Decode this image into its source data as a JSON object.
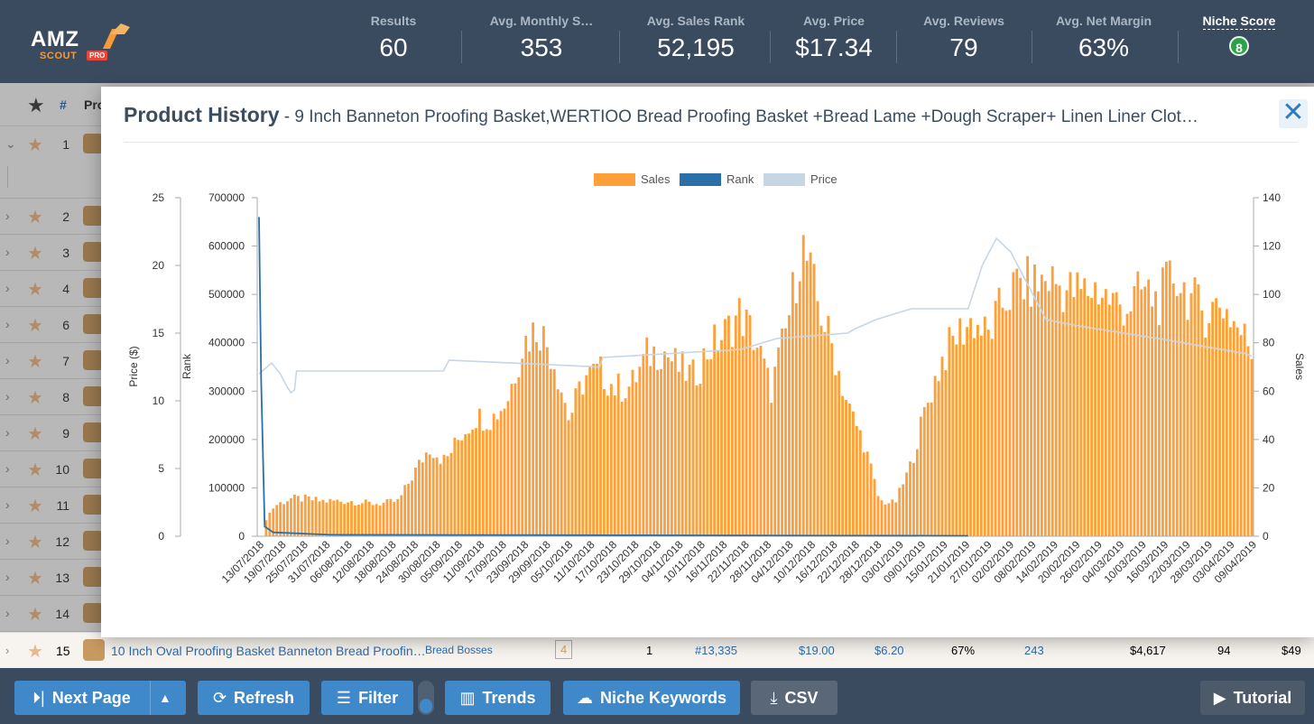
{
  "header": {
    "logo": {
      "amz": "AMZ",
      "scout": "SCOUT",
      "pro": "PRO"
    },
    "stats": [
      {
        "label": "Results",
        "value": "60"
      },
      {
        "label": "Avg. Monthly S…",
        "value": "353"
      },
      {
        "label": "Avg. Sales Rank",
        "value": "52,195"
      },
      {
        "label": "Avg. Price",
        "value": "$17.34"
      },
      {
        "label": "Avg. Reviews",
        "value": "79"
      },
      {
        "label": "Avg. Net Margin",
        "value": "63%"
      }
    ],
    "niche_score": {
      "label": "Niche Score",
      "value": "8"
    }
  },
  "table": {
    "head": {
      "hash": "#",
      "product": "Pro"
    },
    "rows": [
      {
        "num": "1"
      },
      {
        "num": "2"
      },
      {
        "num": "3"
      },
      {
        "num": "4"
      },
      {
        "num": "6"
      },
      {
        "num": "7"
      },
      {
        "num": "8"
      },
      {
        "num": "9"
      },
      {
        "num": "10"
      },
      {
        "num": "11"
      },
      {
        "num": "12"
      },
      {
        "num": "13"
      },
      {
        "num": "14"
      }
    ],
    "row15": {
      "num": "15",
      "name": "10 Inch Oval Proofing Basket Banneton Bread Proofin…",
      "brand": "Bread Bosses",
      "sellers": "4",
      "col_a": "1",
      "rank": "#13,335",
      "price": "$19.00",
      "fees": "$6.20",
      "margin": "67%",
      "reviews": "243",
      "revenue": "$4,617",
      "rpr": "94",
      "last": "$49"
    }
  },
  "modal": {
    "title": "Product History",
    "subtitle": " - 9 Inch Banneton Proofing Basket,WERTIOO Bread Proofing Basket +Bread Lame +Dough Scraper+ Linen Liner Clot…",
    "close": "✕"
  },
  "toolbar": {
    "next_page": "Next Page",
    "refresh": "Refresh",
    "filter": "Filter",
    "trends": "Trends",
    "niche_keywords": "Niche Keywords",
    "csv": "CSV",
    "tutorial": "Tutorial"
  },
  "chart_data": {
    "type": "bar+line",
    "legend": [
      "Sales",
      "Rank",
      "Price"
    ],
    "colors": {
      "sales": "#fea03a",
      "rank": "#2a6fa8",
      "price": "#c7d6e4"
    },
    "axes": {
      "price": {
        "label": "Price ($)",
        "ticks": [
          0,
          5,
          10,
          15,
          20,
          25
        ],
        "range": [
          0,
          25
        ]
      },
      "rank": {
        "label": "Rank",
        "ticks": [
          0,
          100000,
          200000,
          300000,
          400000,
          500000,
          600000,
          700000
        ],
        "tick_labels": [
          "0",
          "100000",
          "200000",
          "300000",
          "400000",
          "500000",
          "600000",
          "700000"
        ],
        "range": [
          0,
          700000
        ]
      },
      "sales": {
        "label": "Sales",
        "ticks": [
          0,
          20,
          40,
          60,
          80,
          100,
          120,
          140
        ],
        "range": [
          0,
          140
        ]
      }
    },
    "x_labels": [
      "13/07/2018",
      "19/07/2018",
      "25/07/2018",
      "31/07/2018",
      "06/08/2018",
      "12/08/2018",
      "18/08/2018",
      "24/08/2018",
      "30/08/2018",
      "05/09/2018",
      "11/09/2018",
      "17/09/2018",
      "23/09/2018",
      "29/09/2018",
      "05/10/2018",
      "11/10/2018",
      "17/10/2018",
      "23/10/2018",
      "29/10/2018",
      "04/11/2018",
      "10/11/2018",
      "16/11/2018",
      "22/11/2018",
      "28/11/2018",
      "04/12/2018",
      "10/12/2018",
      "16/12/2018",
      "22/12/2018",
      "28/12/2018",
      "03/01/2019",
      "09/01/2019",
      "15/01/2019",
      "21/01/2019",
      "27/01/2019",
      "02/02/2019",
      "08/02/2019",
      "14/02/2019",
      "20/02/2019",
      "26/02/2019",
      "04/03/2019",
      "10/03/2019",
      "16/03/2019",
      "22/03/2019",
      "28/03/2019",
      "03/04/2019",
      "09/04/2019"
    ],
    "sales_weekly": [
      3,
      13,
      16,
      16,
      15,
      15,
      15,
      14,
      14,
      15,
      27,
      38,
      32,
      43,
      51,
      50,
      58,
      82,
      90,
      76,
      50,
      68,
      70,
      63,
      64,
      77,
      80,
      72,
      68,
      80,
      86,
      95,
      84,
      62,
      88,
      125,
      100,
      80,
      55,
      40,
      15,
      14,
      30,
      55,
      75,
      86,
      92,
      85,
      100,
      108,
      107,
      110,
      105,
      104,
      106,
      100,
      98,
      105,
      100,
      112,
      102,
      95,
      100,
      90,
      80
    ],
    "rank_series": [
      [
        0,
        660000
      ],
      [
        0.3,
        320000
      ],
      [
        0.8,
        20000
      ],
      [
        2,
        8000
      ],
      [
        10,
        3000
      ],
      [
        100,
        1000
      ]
    ],
    "price_series": [
      [
        0,
        12
      ],
      [
        1.8,
        12.8
      ],
      [
        3,
        12
      ],
      [
        4,
        11
      ],
      [
        4.5,
        10.6
      ],
      [
        5,
        10.8
      ],
      [
        5.3,
        12.2
      ],
      [
        24,
        12.2
      ],
      [
        26,
        12.2
      ],
      [
        26.8,
        13
      ],
      [
        48,
        12.5
      ],
      [
        48.5,
        13.2
      ],
      [
        68,
        13.8
      ],
      [
        73,
        14.6
      ],
      [
        83,
        15
      ],
      [
        84,
        15.3
      ],
      [
        87,
        16
      ],
      [
        92,
        16.8
      ],
      [
        93,
        16.8
      ],
      [
        100,
        16.8
      ],
      [
        102,
        20
      ],
      [
        104,
        22
      ],
      [
        106,
        21
      ],
      [
        109,
        18
      ],
      [
        111,
        16
      ],
      [
        116,
        15.5
      ],
      [
        128,
        14.5
      ],
      [
        139,
        13.5
      ],
      [
        140,
        13.3
      ]
    ]
  }
}
